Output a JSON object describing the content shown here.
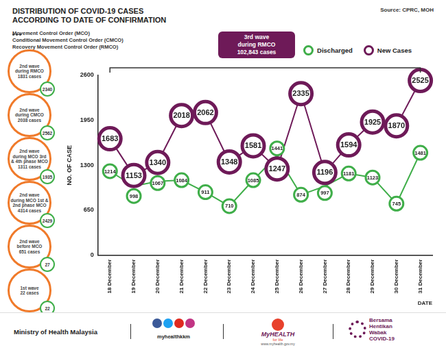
{
  "header": {
    "title": "DISTRIBUTION OF COVID-19 CASES\nACCORDING TO DATE OF CONFIRMATION",
    "notes": [
      "Movement Control Order (MCO)",
      "Conditional Movement Control Order (CMCO)",
      "Recovery Movement Control Order (RMCO)"
    ],
    "source": "Source: CPRC, MOH"
  },
  "banner": [
    "3rd wave",
    "during RMCO",
    "102,843 cases"
  ],
  "waves": [
    {
      "text": [
        "2nd wave",
        "during RMCO",
        "1831 cases"
      ],
      "discharged": 2340
    },
    {
      "text": [
        "2nd wave",
        "during CMCO",
        "2038 cases"
      ],
      "discharged": 2562
    },
    {
      "text": [
        "2nd wave",
        "during MCO 3rd",
        "& 4th phase MCO",
        "1311 cases"
      ],
      "discharged": 1935
    },
    {
      "text": [
        "2nd wave",
        "during MCO 1st &",
        "2nd phase MCO",
        "4314 cases"
      ],
      "discharged": 2429
    },
    {
      "text": [
        "2nd wave",
        "before MCO",
        "651 cases"
      ],
      "discharged": 27
    },
    {
      "text": [
        "1st wave",
        "22 cases"
      ],
      "discharged": 22
    }
  ],
  "chart_data": {
    "type": "line",
    "categories": [
      "18 December",
      "19 December",
      "20 December",
      "21 December",
      "22 December",
      "23 December",
      "24 December",
      "25 December",
      "26 December",
      "27 December",
      "28 December",
      "29 December",
      "30 December",
      "31 December"
    ],
    "series": [
      {
        "name": "Discharged",
        "color": "#3fae49",
        "values": [
          1214,
          998,
          1067,
          1084,
          911,
          710,
          1085,
          1441,
          874,
          997,
          1181,
          1123,
          745,
          1481
        ]
      },
      {
        "name": "New Cases",
        "color": "#6e1a58",
        "values": [
          1683,
          1153,
          1340,
          2018,
          2062,
          1348,
          1581,
          1247,
          2335,
          1196,
          1594,
          1925,
          1870,
          2525
        ]
      }
    ],
    "ylim": [
      0,
      2600
    ],
    "yticks": [
      0,
      650,
      1300,
      1950,
      2600
    ],
    "y_label": "NO. OF CASE",
    "x_label": "DATE",
    "grid": false,
    "legend": "top-right",
    "data_labels": true
  },
  "footer": {
    "ministry": "Ministry of Health Malaysia",
    "social": "myhealthkkm",
    "myhealth": [
      "MyHEALTH",
      "for life",
      "www.myhealth.gov.my"
    ],
    "campaign": [
      "Bersama",
      "Hentikan",
      "Wabak",
      "COVID-19"
    ]
  }
}
